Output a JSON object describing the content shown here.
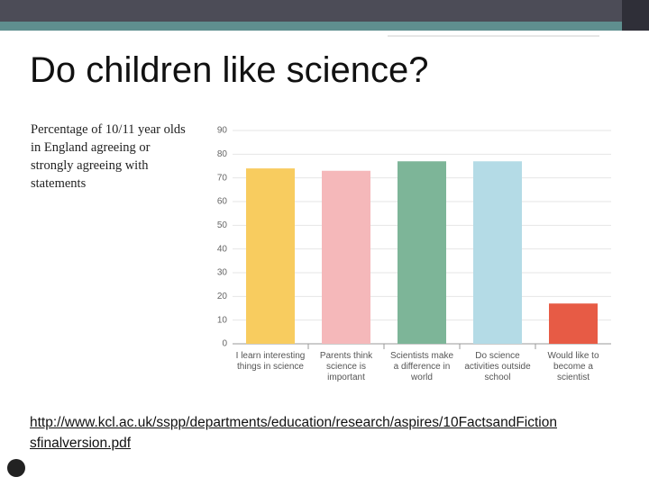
{
  "slide_title": "Do children like science?",
  "link": "http://www.kcl.ac.uk/sspp/departments/education/research/aspires/10FactsandFictionsfinalversion.pdf",
  "chart_data": {
    "type": "bar",
    "title": "Percentage of 10/11 year olds in England agreeing or strongly agreeing with statements",
    "categories": [
      "I learn interesting things in science",
      "Parents think science is important",
      "Scientists make a difference in world",
      "Do science activities outside school",
      "Would like to become a scientist"
    ],
    "values": [
      74,
      73,
      77,
      77,
      17
    ],
    "colors": [
      "#f8cc5f",
      "#f5b8ba",
      "#7db598",
      "#b4dbe6",
      "#e75b45"
    ],
    "ylim": [
      0,
      90
    ],
    "yticks": [
      0,
      10,
      20,
      30,
      40,
      50,
      60,
      70,
      80,
      90
    ],
    "grid": true
  }
}
